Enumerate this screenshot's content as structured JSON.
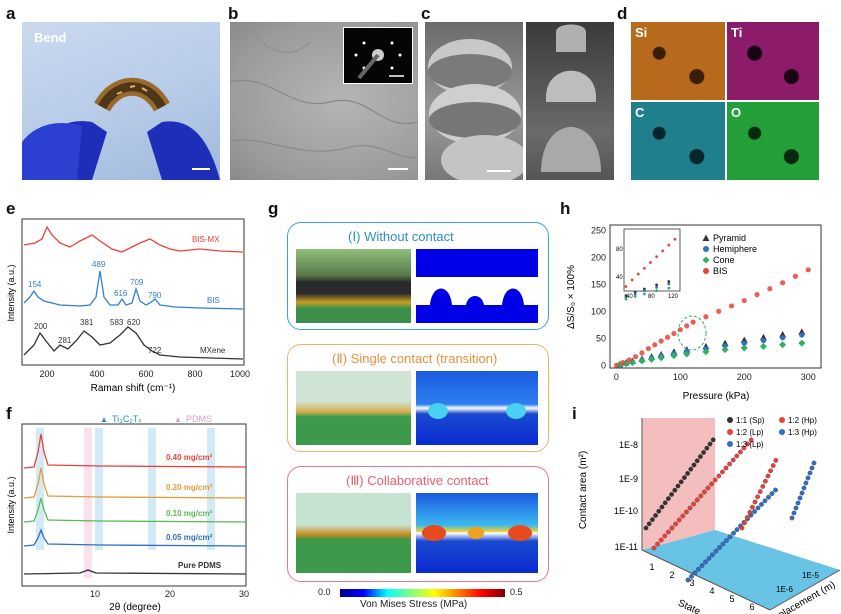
{
  "panels": {
    "a": "a",
    "b": "b",
    "c": "c",
    "d": "d",
    "e": "e",
    "f": "f",
    "g": "g",
    "h": "h",
    "i": "i"
  },
  "panel_a": {
    "label": "Bend"
  },
  "panel_d": {
    "elements": [
      "Si",
      "Ti",
      "C",
      "O"
    ],
    "colors": [
      "#b86a1c",
      "#c4268f",
      "#2bb6c9",
      "#2fbf4a"
    ]
  },
  "panel_e": {
    "xlabel": "Raman shift (cm⁻¹)",
    "ylabel": "Intensity (a.u.)",
    "xticks": [
      "200",
      "400",
      "600",
      "800",
      "1000"
    ],
    "series": [
      {
        "name": "BIS-MX",
        "color": "#e8433a"
      },
      {
        "name": "BIS",
        "color": "#2f7fd4"
      },
      {
        "name": "MXene",
        "color": "#333333"
      }
    ],
    "bis_peaks": [
      "154",
      "489",
      "616",
      "709",
      "790"
    ],
    "mxene_peaks": [
      "200",
      "281",
      "381",
      "583",
      "620",
      "722"
    ]
  },
  "panel_f": {
    "xlabel": "2θ (degree)",
    "ylabel": "Intensity (a.u.)",
    "xticks": [
      "10",
      "20",
      "30"
    ],
    "legend_ti": "Ti₃C₂Tₓ",
    "legend_pdms": "PDMS",
    "series": [
      {
        "name": "0.40 mg/cm²",
        "color": "#e8433a"
      },
      {
        "name": "0.20 mg/cm²",
        "color": "#e89a3a"
      },
      {
        "name": "0.10 mg/cm²",
        "color": "#5cb85c"
      },
      {
        "name": "0.05 mg/cm²",
        "color": "#2f6fc4"
      },
      {
        "name": "Pure PDMS",
        "color": "#333333"
      }
    ]
  },
  "panel_g": {
    "box1": "(Ⅰ) Without contact",
    "box2": "(Ⅱ) Single contact  (transition)",
    "box3": "(Ⅲ) Collaborative contact",
    "cbar_min": "0.0",
    "cbar_max": "0.5",
    "cbar_label": "Von Mises Stress (MPa)"
  },
  "chart_data": [
    {
      "type": "scatter",
      "title": "",
      "xlabel": "Pressure (kPa)",
      "ylabel": "ΔS/S₀ × 100%",
      "xlim": [
        -10,
        320
      ],
      "ylim": [
        -5,
        260
      ],
      "xticks": [
        "0",
        "100",
        "200",
        "300"
      ],
      "yticks": [
        "0",
        "50",
        "100",
        "150",
        "200",
        "250"
      ],
      "inset_xticks": [
        "40",
        "80",
        "120"
      ],
      "inset_yticks": [
        "40",
        "80"
      ],
      "series": [
        {
          "name": "Pyramid",
          "marker": "triangle",
          "color": "#333333",
          "x": [
            5,
            15,
            25,
            40,
            55,
            70,
            90,
            110,
            140,
            170,
            200,
            230,
            260,
            290
          ],
          "y": [
            2,
            5,
            8,
            12,
            16,
            20,
            25,
            29,
            35,
            41,
            47,
            52,
            57,
            62
          ]
        },
        {
          "name": "Hemiphere",
          "marker": "circle",
          "color": "#2f6fc4",
          "x": [
            5,
            15,
            25,
            40,
            55,
            70,
            90,
            110,
            140,
            170,
            200,
            230,
            260,
            290
          ],
          "y": [
            1,
            4,
            7,
            10,
            14,
            18,
            22,
            26,
            31,
            36,
            41,
            46,
            51,
            56
          ]
        },
        {
          "name": "Cone",
          "marker": "diamond",
          "color": "#2fae6a",
          "x": [
            5,
            15,
            25,
            40,
            55,
            70,
            90,
            110,
            140,
            170,
            200,
            230,
            260,
            290
          ],
          "y": [
            1,
            3,
            5,
            8,
            11,
            14,
            18,
            21,
            25,
            29,
            32,
            35,
            38,
            41
          ]
        },
        {
          "name": "BIS",
          "marker": "circle",
          "color": "#e8433a",
          "x": [
            0,
            10,
            20,
            30,
            40,
            50,
            60,
            70,
            80,
            90,
            100,
            110,
            120,
            140,
            160,
            180,
            200,
            220,
            240,
            260,
            280,
            300
          ],
          "y": [
            0,
            5,
            10,
            16,
            23,
            31,
            38,
            45,
            52,
            59,
            66,
            73,
            80,
            90,
            100,
            110,
            120,
            131,
            142,
            153,
            165,
            177
          ]
        }
      ]
    },
    {
      "type": "scatter",
      "title": "",
      "xlabel": "State",
      "ylabel": "Contact area (m²)",
      "zlabel": "Displacement (m)",
      "yticks": [
        "1E-11",
        "1E-10",
        "1E-9",
        "1E-8"
      ],
      "xticks": [
        "1",
        "2",
        "3",
        "4",
        "5",
        "6"
      ],
      "zticks": [
        "1E-6",
        "1E-5"
      ],
      "series": [
        {
          "name": "1:1 (Sp)",
          "color": "#333333"
        },
        {
          "name": "1:2 (Lp)",
          "color": "#e8433a"
        },
        {
          "name": "1:3 (Lp)",
          "color": "#2f6fc4"
        },
        {
          "name": "1:2 (Hp)",
          "color": "#e8433a"
        },
        {
          "name": "1:3 (Hp)",
          "color": "#2f6fc4"
        }
      ]
    }
  ]
}
